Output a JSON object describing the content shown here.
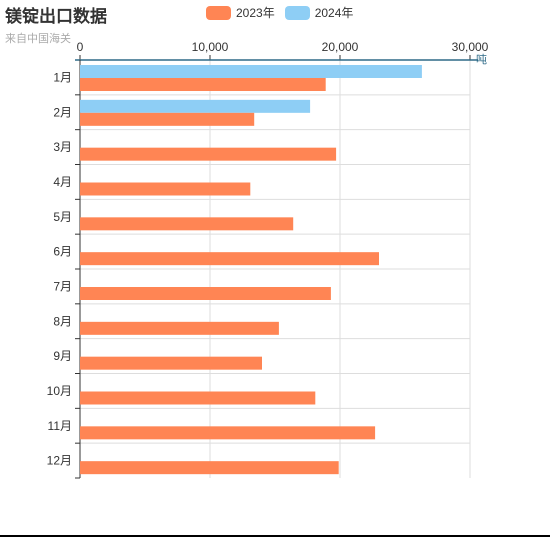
{
  "header": {
    "title": "镁锭出口数据",
    "subtitle": "来自中国海关"
  },
  "legend": [
    {
      "label": "2023年",
      "color": "#FF8554"
    },
    {
      "label": "2024年",
      "color": "#8ECEF5"
    }
  ],
  "chart_data": {
    "type": "bar",
    "orientation": "horizontal",
    "title": "镁锭出口数据",
    "subtitle": "来自中国海关",
    "categories": [
      "1月",
      "2月",
      "3月",
      "4月",
      "5月",
      "6月",
      "7月",
      "8月",
      "9月",
      "10月",
      "11月",
      "12月"
    ],
    "series": [
      {
        "name": "2023年",
        "color": "#FF8554",
        "values": [
          18900,
          13400,
          19700,
          13100,
          16400,
          23000,
          19300,
          15300,
          14000,
          18100,
          22700,
          19900
        ]
      },
      {
        "name": "2024年",
        "color": "#8ECEF5",
        "values": [
          26300,
          17700,
          null,
          null,
          null,
          null,
          null,
          null,
          null,
          null,
          null,
          null
        ]
      }
    ],
    "xlim": [
      0,
      30000
    ],
    "x_ticks": [
      "0",
      "10,000",
      "20,000",
      "30,000"
    ],
    "x_unit": "吨",
    "x_axis_position": "top",
    "grid": true,
    "legend_position": "top"
  }
}
